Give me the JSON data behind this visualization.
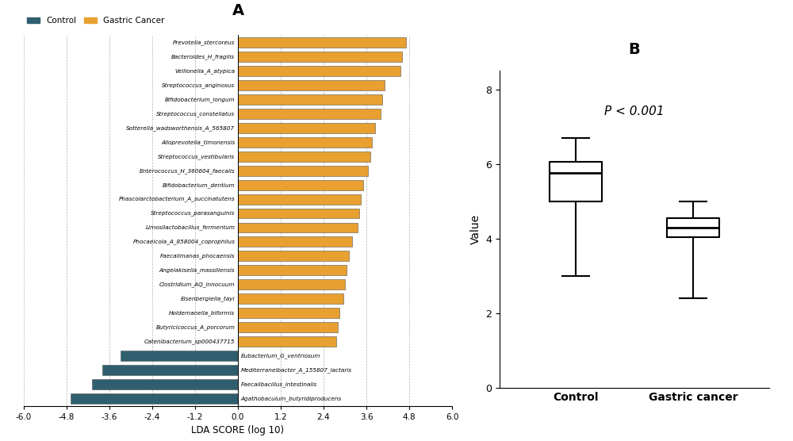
{
  "panel_A_title": "A",
  "panel_B_title": "B",
  "gastric_cancer_bars": [
    {
      "label": "Prevotella_stercoreus",
      "value": 4.7
    },
    {
      "label": "Bacteroides_H_fragilis",
      "value": 4.6
    },
    {
      "label": "Veillonella_A_atypica",
      "value": 4.55
    },
    {
      "label": "Streptococcus_anginosus",
      "value": 4.1
    },
    {
      "label": "Bifidobacterium_longum",
      "value": 4.05
    },
    {
      "label": "Streptococcus_constellatus",
      "value": 4.0
    },
    {
      "label": "Sotterella_wadsworthensis_A_565807",
      "value": 3.85
    },
    {
      "label": "Alloprevotella_timonensis",
      "value": 3.75
    },
    {
      "label": "Streptococcus_vestibularis",
      "value": 3.7
    },
    {
      "label": "Enterococcus_H_360604_faecalis",
      "value": 3.65
    },
    {
      "label": "Bifidobacterium_dentium",
      "value": 3.5
    },
    {
      "label": "Phascolarctobacterium_A_succinatutens",
      "value": 3.45
    },
    {
      "label": "Streptococcus_parasanguinis",
      "value": 3.4
    },
    {
      "label": "Limosilactobacillus_fermentum",
      "value": 3.35
    },
    {
      "label": "Phocaeicola_A_858004_coprophilus",
      "value": 3.2
    },
    {
      "label": "Faecalimanas_phocaensis",
      "value": 3.1
    },
    {
      "label": "Angelakisella_massiliensis",
      "value": 3.05
    },
    {
      "label": "Clostridium_AQ_innocuum",
      "value": 3.0
    },
    {
      "label": "Eisenbergiella_tayi",
      "value": 2.95
    },
    {
      "label": "Holdemanella_biformis",
      "value": 2.85
    },
    {
      "label": "Butyricicoccus_A_porcorum",
      "value": 2.8
    },
    {
      "label": "Catenibacterium_sp000437715",
      "value": 2.75
    }
  ],
  "control_bars": [
    {
      "label": "Eubacterium_G_ventriosum",
      "value": -3.3
    },
    {
      "label": "Mediterraneibacter_A_155807_lactaris",
      "value": -3.8
    },
    {
      "label": "Faecalibacillus_intestinalis",
      "value": -4.1
    },
    {
      "label": "Agathobaculum_butyridiproducens",
      "value": -4.7
    }
  ],
  "gastric_color": "#E8A030",
  "control_color": "#2F5F6F",
  "bar_edge_color": "#555555",
  "xlim": [
    -6.0,
    6.0
  ],
  "xticks": [
    -6.0,
    -4.8,
    -3.6,
    -2.4,
    -1.2,
    0.0,
    1.2,
    2.4,
    3.6,
    4.8,
    6.0
  ],
  "xtick_labels": [
    "-6.0",
    "-4.8",
    "-3.6",
    "-2.4",
    "-1.2",
    "0.0",
    "1.2",
    "2.4",
    "3.6",
    "4.8",
    "6.0"
  ],
  "xlabel": "LDA SCORE (log 10)",
  "legend_control": "Control",
  "legend_gastric": "Gastric Cancer",
  "boxplot_control": {
    "whislo": 3.0,
    "q1": 5.0,
    "med": 5.75,
    "q3": 6.05,
    "whishi": 6.7,
    "label": "Control"
  },
  "boxplot_gastric": {
    "whislo": 2.4,
    "q1": 4.05,
    "med": 4.3,
    "q3": 4.55,
    "whishi": 5.0,
    "label": "Gastric cancer"
  },
  "boxplot_ylabel": "Value",
  "boxplot_ylim": [
    0,
    8.5
  ],
  "boxplot_yticks": [
    0,
    2,
    4,
    6,
    8
  ],
  "pvalue_text": "P < 0.001",
  "background_color": "#ffffff"
}
